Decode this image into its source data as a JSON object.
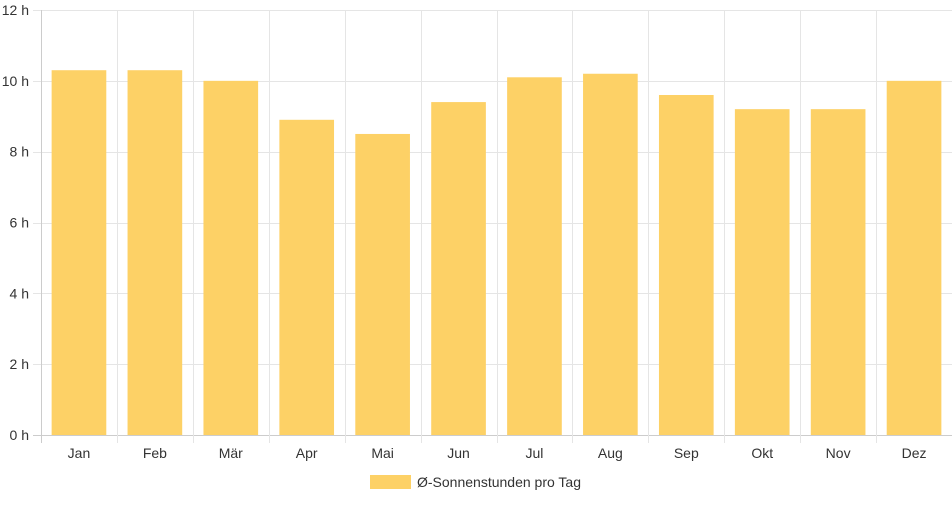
{
  "chart_data": {
    "type": "bar",
    "categories": [
      "Jan",
      "Feb",
      "Mär",
      "Apr",
      "Mai",
      "Jun",
      "Jul",
      "Aug",
      "Sep",
      "Okt",
      "Nov",
      "Dez"
    ],
    "series": [
      {
        "name": "Ø-Sonnenstunden pro Tag",
        "values": [
          10.3,
          10.3,
          10.0,
          8.9,
          8.5,
          9.4,
          10.1,
          10.2,
          9.6,
          9.2,
          9.2,
          10.0
        ],
        "color": "#fdd166"
      }
    ],
    "title": "",
    "xlabel": "",
    "ylabel": "",
    "ylim": [
      0,
      12
    ],
    "yticks": [
      "0 h",
      "2 h",
      "4 h",
      "6 h",
      "8 h",
      "10 h",
      "12 h"
    ],
    "grid": true,
    "legend_position": "bottom"
  }
}
